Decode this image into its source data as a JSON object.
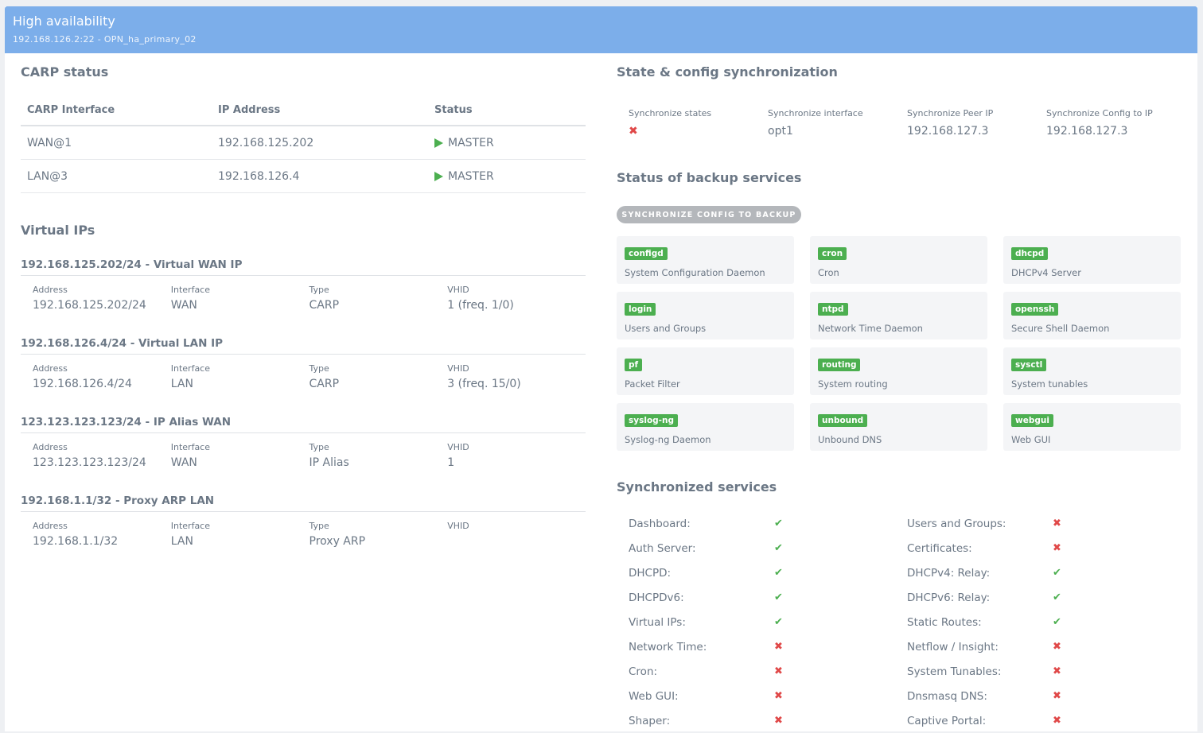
{
  "header": {
    "title": "High availability",
    "subtitle": "192.168.126.2:22 - OPN_ha_primary_02"
  },
  "carp": {
    "title": "CARP status",
    "headers": [
      "CARP Interface",
      "IP Address",
      "Status"
    ],
    "rows": [
      {
        "iface": "WAN@1",
        "ip": "192.168.125.202",
        "status": "MASTER"
      },
      {
        "iface": "LAN@3",
        "ip": "192.168.126.4",
        "status": "MASTER"
      }
    ]
  },
  "vips": {
    "title": "Virtual IPs",
    "labels": {
      "address": "Address",
      "interface": "Interface",
      "type": "Type",
      "vhid": "VHID"
    },
    "groups": [
      {
        "title": "192.168.125.202/24 - Virtual WAN IP",
        "address": "192.168.125.202/24",
        "interface": "WAN",
        "type": "CARP",
        "vhid": "1 (freq. 1/0)"
      },
      {
        "title": "192.168.126.4/24 - Virtual LAN IP",
        "address": "192.168.126.4/24",
        "interface": "LAN",
        "type": "CARP",
        "vhid": "3 (freq. 15/0)"
      },
      {
        "title": "123.123.123.123/24 - IP Alias WAN",
        "address": "123.123.123.123/24",
        "interface": "WAN",
        "type": "IP Alias",
        "vhid": "1"
      },
      {
        "title": "192.168.1.1/32 - Proxy ARP LAN",
        "address": "192.168.1.1/32",
        "interface": "LAN",
        "type": "Proxy ARP",
        "vhid": ""
      }
    ]
  },
  "sync": {
    "title": "State & config synchronization",
    "items": [
      {
        "label": "Synchronize states",
        "value": "✖"
      },
      {
        "label": "Synchronize interface",
        "value": "opt1"
      },
      {
        "label": "Synchronize Peer IP",
        "value": "192.168.127.3"
      },
      {
        "label": "Synchronize Config to IP",
        "value": "192.168.127.3"
      }
    ]
  },
  "backup": {
    "title": "Status of backup services",
    "button": "SYNCHRONIZE CONFIG TO BACKUP",
    "services": [
      {
        "badge": "configd",
        "desc": "System Configuration Daemon"
      },
      {
        "badge": "cron",
        "desc": "Cron"
      },
      {
        "badge": "dhcpd",
        "desc": "DHCPv4 Server"
      },
      {
        "badge": "login",
        "desc": "Users and Groups"
      },
      {
        "badge": "ntpd",
        "desc": "Network Time Daemon"
      },
      {
        "badge": "openssh",
        "desc": "Secure Shell Daemon"
      },
      {
        "badge": "pf",
        "desc": "Packet Filter"
      },
      {
        "badge": "routing",
        "desc": "System routing"
      },
      {
        "badge": "sysctl",
        "desc": "System tunables"
      },
      {
        "badge": "syslog-ng",
        "desc": "Syslog-ng Daemon"
      },
      {
        "badge": "unbound",
        "desc": "Unbound DNS"
      },
      {
        "badge": "webgui",
        "desc": "Web GUI"
      }
    ]
  },
  "synced": {
    "title": "Synchronized services",
    "rows": [
      [
        {
          "name": "Dashboard:",
          "ok": true
        },
        {
          "name": "Users and Groups:",
          "ok": false
        }
      ],
      [
        {
          "name": "Auth Server:",
          "ok": true
        },
        {
          "name": "Certificates:",
          "ok": false
        }
      ],
      [
        {
          "name": "DHCPD:",
          "ok": true
        },
        {
          "name": "DHCPv4: Relay:",
          "ok": true
        }
      ],
      [
        {
          "name": "DHCPDv6:",
          "ok": true
        },
        {
          "name": "DHCPv6: Relay:",
          "ok": true
        }
      ],
      [
        {
          "name": "Virtual IPs:",
          "ok": true
        },
        {
          "name": "Static Routes:",
          "ok": true
        }
      ],
      [
        {
          "name": "Network Time:",
          "ok": false
        },
        {
          "name": "Netflow / Insight:",
          "ok": false
        }
      ],
      [
        {
          "name": "Cron:",
          "ok": false
        },
        {
          "name": "System Tunables:",
          "ok": false
        }
      ],
      [
        {
          "name": "Web GUI:",
          "ok": false
        },
        {
          "name": "Dnsmasq DNS:",
          "ok": false
        }
      ],
      [
        {
          "name": "Shaper:",
          "ok": false
        },
        {
          "name": "Captive Portal:",
          "ok": false
        }
      ]
    ],
    "check_glyph": "✔",
    "cross_glyph": "✖"
  },
  "colors": {
    "header": "#7caeea",
    "ok": "#4caf50",
    "bad": "#e04848",
    "button": "#b4b7bb"
  }
}
